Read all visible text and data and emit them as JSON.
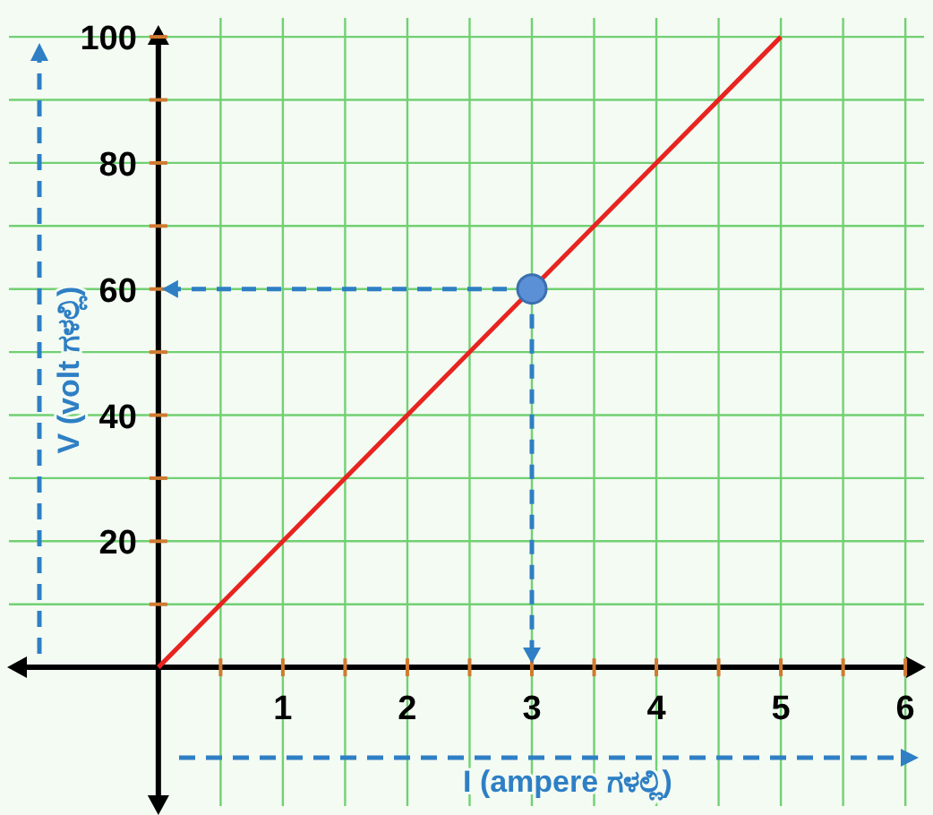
{
  "chart_data": {
    "type": "line",
    "xlabel": "I (ampere ಗಳಲ್ಲಿ)",
    "ylabel": "V (volt ಗಳಲ್ಲಿ)",
    "xlim": [
      -1.2,
      6.15
    ],
    "ylim": [
      -22,
      103
    ],
    "xticks": [
      {
        "value": 0.5,
        "label": null
      },
      1,
      {
        "value": 1.5,
        "label": null
      },
      2,
      {
        "value": 2.5,
        "label": null
      },
      3,
      {
        "value": 3.5,
        "label": null
      },
      4,
      {
        "value": 4.5,
        "label": null
      },
      5,
      {
        "value": 5.5,
        "label": null
      },
      6
    ],
    "yticks": [
      {
        "value": 10,
        "label": null
      },
      20,
      {
        "value": 30,
        "label": null
      },
      40,
      {
        "value": 50,
        "label": null
      },
      60,
      {
        "value": 70,
        "label": null
      },
      80,
      {
        "value": 90,
        "label": null
      },
      100
    ],
    "grid": true,
    "series": [
      {
        "color": "#e82420",
        "x": [
          0,
          5
        ],
        "values": [
          0,
          100
        ]
      },
      {
        "type": "scatter",
        "color": "#5b8fd6",
        "x": [
          3
        ],
        "values": [
          60
        ],
        "marker": "circle"
      }
    ]
  }
}
